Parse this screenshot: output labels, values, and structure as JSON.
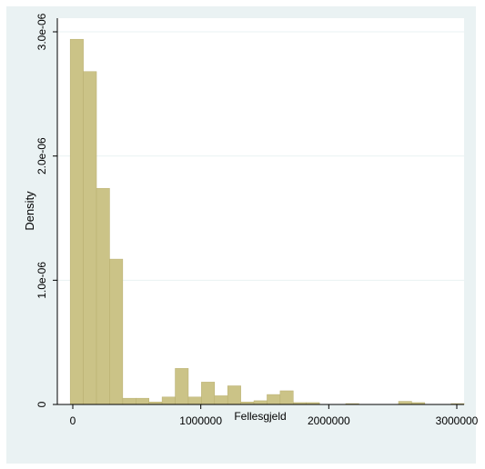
{
  "chart_data": {
    "type": "histogram",
    "title": "",
    "xlabel": "Fellesgjeld",
    "ylabel": "Density",
    "xlim": [
      -50000,
      3000000
    ],
    "ylim": [
      0,
      3.05e-06
    ],
    "x_ticks": [
      {
        "value": 0,
        "label": "0"
      },
      {
        "value": 1000000,
        "label": "1000000"
      },
      {
        "value": 2000000,
        "label": "2000000"
      },
      {
        "value": 3000000,
        "label": "3000000"
      }
    ],
    "y_ticks": [
      {
        "value": 0,
        "label": "0"
      },
      {
        "value": 1e-06,
        "label": "1.0e-06"
      },
      {
        "value": 2e-06,
        "label": "2.0e-06"
      },
      {
        "value": 3e-06,
        "label": "3.0e-06"
      }
    ],
    "grid": true,
    "bin_width": 102500,
    "bins": [
      {
        "start": -20000,
        "density": 2.94e-06
      },
      {
        "start": 82500,
        "density": 2.68e-06
      },
      {
        "start": 185000,
        "density": 1.74e-06
      },
      {
        "start": 287500,
        "density": 1.17e-06
      },
      {
        "start": 390000,
        "density": 5e-08
      },
      {
        "start": 492500,
        "density": 5e-08
      },
      {
        "start": 595000,
        "density": 2e-08
      },
      {
        "start": 697500,
        "density": 6e-08
      },
      {
        "start": 800000,
        "density": 2.9e-07
      },
      {
        "start": 902500,
        "density": 6e-08
      },
      {
        "start": 1005000,
        "density": 1.8e-07
      },
      {
        "start": 1107500,
        "density": 7e-08
      },
      {
        "start": 1210000,
        "density": 1.5e-07
      },
      {
        "start": 1312500,
        "density": 2e-08
      },
      {
        "start": 1415000,
        "density": 3e-08
      },
      {
        "start": 1517500,
        "density": 8e-08
      },
      {
        "start": 1620000,
        "density": 1.1e-07
      },
      {
        "start": 1722500,
        "density": 1.5e-08
      },
      {
        "start": 1825000,
        "density": 1.5e-08
      },
      {
        "start": 2132500,
        "density": 7e-09
      },
      {
        "start": 2545000,
        "density": 2.5e-08
      },
      {
        "start": 2647500,
        "density": 1.5e-08
      },
      {
        "start": 2955000,
        "density": 7e-09
      }
    ],
    "colors": {
      "bar_fill": "#cbc387",
      "bar_stroke": "#b8ae6e",
      "plot_bg": "#ffffff",
      "outer_bg": "#eaf2f3",
      "grid": "#eaf2f3",
      "axis": "#000000"
    }
  }
}
